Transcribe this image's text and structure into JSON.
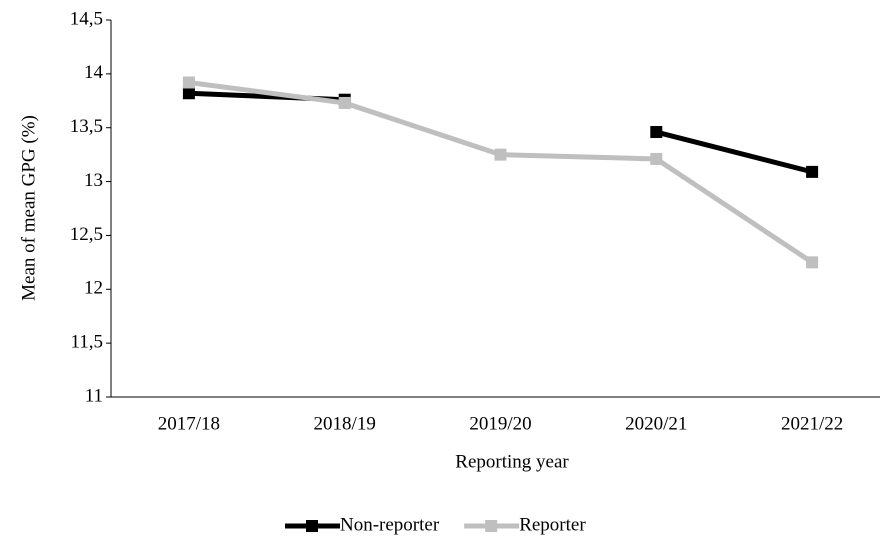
{
  "chart_data": {
    "type": "line",
    "x_label": "Reporting year",
    "y_label": "Mean of mean GPG (%)",
    "categories": [
      "2017/18",
      "2018/19",
      "2019/20",
      "2020/21",
      "2021/22"
    ],
    "series": [
      {
        "name": "Non-reporter",
        "color": "#000000",
        "values": [
          13.82,
          13.76,
          null,
          13.46,
          13.09
        ]
      },
      {
        "name": "Reporter",
        "color": "#bfbfbf",
        "values": [
          13.92,
          13.73,
          13.25,
          13.21,
          12.25
        ]
      }
    ],
    "ylim": [
      11,
      14.5
    ],
    "yticks": [
      11,
      {
        "value": 11.5,
        "label": "11,5"
      },
      12,
      {
        "value": 12.5,
        "label": "12,5"
      },
      13,
      {
        "value": 13.5,
        "label": "13,5"
      },
      14,
      {
        "value": 14.5,
        "label": "14,5"
      }
    ],
    "legend": "bottom"
  }
}
